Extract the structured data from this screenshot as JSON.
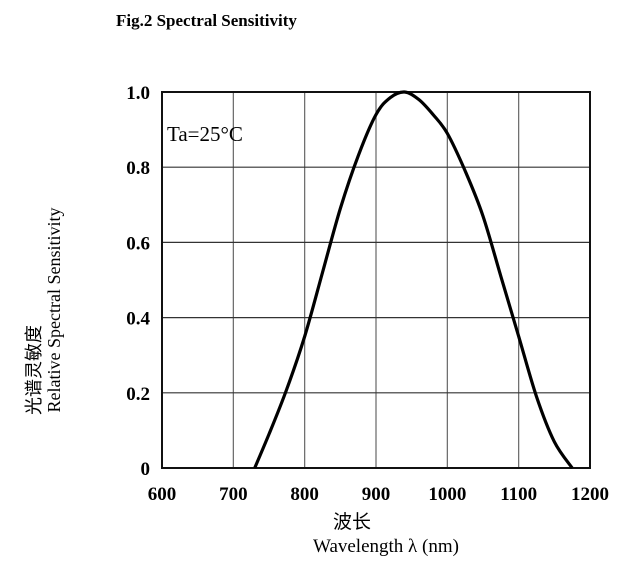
{
  "chart_data": {
    "type": "line",
    "title": "Fig.2 Spectral Sensitivity",
    "xlabel_cn": "波长",
    "xlabel": "Wavelength λ (nm)",
    "ylabel_cn": "光谱灵敏度",
    "ylabel": "Relative Spectral Sensitivity",
    "annotation": "Ta=25°C",
    "xlim": [
      600,
      1200
    ],
    "ylim": [
      0,
      1.0
    ],
    "grid": true,
    "x_ticks": [
      "600",
      "700",
      "800",
      "900",
      "1000",
      "1100",
      "1200"
    ],
    "y_ticks": [
      "0",
      "0.2",
      "0.4",
      "0.6",
      "0.8",
      "1.0"
    ],
    "series": [
      {
        "x": [
          730,
          750,
          775,
          800,
          825,
          850,
          875,
          900,
          920,
          940,
          960,
          980,
          1000,
          1025,
          1050,
          1075,
          1100,
          1125,
          1150,
          1175
        ],
        "y": [
          0.0,
          0.09,
          0.21,
          0.35,
          0.52,
          0.69,
          0.83,
          0.94,
          0.985,
          1.0,
          0.98,
          0.94,
          0.89,
          0.79,
          0.67,
          0.51,
          0.35,
          0.19,
          0.07,
          0.0
        ]
      }
    ]
  }
}
